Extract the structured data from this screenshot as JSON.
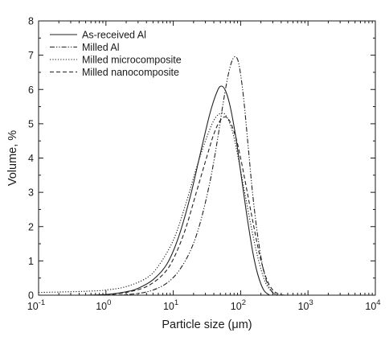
{
  "chart_data": {
    "type": "line",
    "title": "",
    "xlabel": "Particle size (μm)",
    "ylabel": "Volume, %",
    "xscale": "log",
    "xlim": [
      0.1,
      10000
    ],
    "ylim": [
      0,
      8
    ],
    "grid": false,
    "legend_position": "top-left",
    "x_ticks": [
      {
        "value": 0.1,
        "base": "10",
        "exp": "-1"
      },
      {
        "value": 1,
        "base": "10",
        "exp": "0"
      },
      {
        "value": 10,
        "base": "10",
        "exp": "1"
      },
      {
        "value": 100,
        "base": "10",
        "exp": "2"
      },
      {
        "value": 1000,
        "base": "10",
        "exp": "3"
      },
      {
        "value": 10000,
        "base": "10",
        "exp": "4"
      }
    ],
    "y_ticks": [
      "0",
      "1",
      "2",
      "3",
      "4",
      "5",
      "6",
      "7",
      "8"
    ],
    "series": [
      {
        "name": "As-received Al",
        "style": "solid",
        "points": [
          [
            0.5,
            0
          ],
          [
            1,
            0.02
          ],
          [
            2,
            0.1
          ],
          [
            3,
            0.2
          ],
          [
            5,
            0.45
          ],
          [
            8,
            0.9
          ],
          [
            12,
            1.7
          ],
          [
            18,
            2.9
          ],
          [
            25,
            4.1
          ],
          [
            35,
            5.3
          ],
          [
            45,
            5.95
          ],
          [
            52,
            6.1
          ],
          [
            60,
            5.95
          ],
          [
            70,
            5.5
          ],
          [
            85,
            4.6
          ],
          [
            100,
            3.6
          ],
          [
            120,
            2.5
          ],
          [
            150,
            1.3
          ],
          [
            180,
            0.6
          ],
          [
            220,
            0.15
          ],
          [
            270,
            0
          ]
        ]
      },
      {
        "name": "Milled Al",
        "style": "dashdotdot",
        "points": [
          [
            1.5,
            0
          ],
          [
            3,
            0.05
          ],
          [
            5,
            0.15
          ],
          [
            8,
            0.35
          ],
          [
            12,
            0.7
          ],
          [
            18,
            1.3
          ],
          [
            25,
            2.1
          ],
          [
            35,
            3.3
          ],
          [
            45,
            4.5
          ],
          [
            55,
            5.6
          ],
          [
            65,
            6.4
          ],
          [
            75,
            6.85
          ],
          [
            85,
            6.95
          ],
          [
            95,
            6.7
          ],
          [
            110,
            5.8
          ],
          [
            130,
            4.3
          ],
          [
            150,
            3.0
          ],
          [
            180,
            1.7
          ],
          [
            220,
            0.7
          ],
          [
            270,
            0.2
          ],
          [
            330,
            0.03
          ],
          [
            400,
            0
          ]
        ]
      },
      {
        "name": "Milled microcomposite",
        "style": "dotted",
        "points": [
          [
            0.1,
            0.08
          ],
          [
            0.3,
            0.1
          ],
          [
            0.6,
            0.12
          ],
          [
            1,
            0.15
          ],
          [
            2,
            0.25
          ],
          [
            4,
            0.5
          ],
          [
            6,
            0.85
          ],
          [
            10,
            1.6
          ],
          [
            15,
            2.6
          ],
          [
            22,
            3.7
          ],
          [
            30,
            4.5
          ],
          [
            40,
            5.1
          ],
          [
            50,
            5.3
          ],
          [
            60,
            5.25
          ],
          [
            75,
            4.8
          ],
          [
            90,
            4.1
          ],
          [
            110,
            3.2
          ],
          [
            140,
            2.1
          ],
          [
            180,
            1.1
          ],
          [
            230,
            0.4
          ],
          [
            290,
            0.1
          ],
          [
            350,
            0
          ]
        ]
      },
      {
        "name": "Milled nanocomposite",
        "style": "dashed",
        "points": [
          [
            1,
            0
          ],
          [
            2,
            0.08
          ],
          [
            4,
            0.25
          ],
          [
            7,
            0.6
          ],
          [
            10,
            1.05
          ],
          [
            15,
            1.9
          ],
          [
            22,
            3.0
          ],
          [
            30,
            3.9
          ],
          [
            40,
            4.7
          ],
          [
            50,
            5.1
          ],
          [
            60,
            5.2
          ],
          [
            70,
            5.05
          ],
          [
            85,
            4.6
          ],
          [
            100,
            4.0
          ],
          [
            120,
            3.2
          ],
          [
            150,
            2.2
          ],
          [
            190,
            1.2
          ],
          [
            240,
            0.5
          ],
          [
            300,
            0.15
          ],
          [
            380,
            0.02
          ],
          [
            450,
            0
          ]
        ]
      }
    ]
  }
}
